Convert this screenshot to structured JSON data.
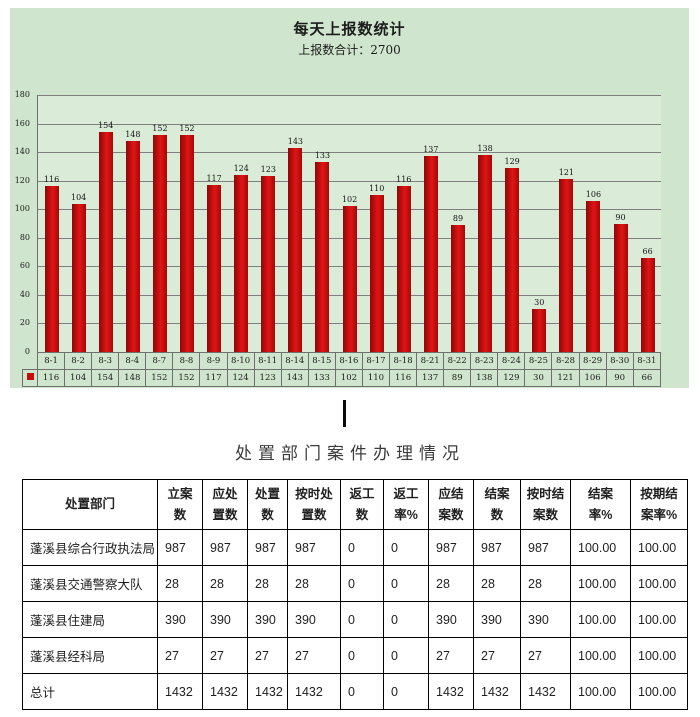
{
  "colors": {
    "panel_bg": "#cfe5cd",
    "plot_bg": "#daecd8",
    "bar_red": "#d51114",
    "bar_red_dark": "#8e0707",
    "grid_line": "#7f7f7f",
    "chart_border": "#6f6f6f",
    "table_border": "#000000",
    "legend_key": "#c90a0a"
  },
  "chart_data": {
    "type": "bar",
    "title": "每天上报数统计",
    "subtitle": "上报数合计：2700",
    "total": 2700,
    "categories": [
      "8-1",
      "8-2",
      "8-3",
      "8-4",
      "8-7",
      "8-8",
      "8-9",
      "8-10",
      "8-11",
      "8-14",
      "8-15",
      "8-16",
      "8-17",
      "8-18",
      "8-21",
      "8-22",
      "8-23",
      "8-24",
      "8-25",
      "8-28",
      "8-29",
      "8-30",
      "8-31"
    ],
    "values": [
      116,
      104,
      154,
      148,
      152,
      152,
      117,
      124,
      123,
      143,
      133,
      102,
      110,
      116,
      137,
      89,
      138,
      129,
      30,
      121,
      106,
      90,
      66
    ],
    "xlabel": "",
    "ylabel": "",
    "ylim": [
      0,
      180
    ],
    "yticks": [
      0,
      20,
      40,
      60,
      80,
      100,
      120,
      140,
      160,
      180
    ],
    "grid": true,
    "legend_position": "bottom-left-key",
    "data_labels": true
  },
  "table": {
    "title": "处置部门案件办理情况",
    "headers": [
      "处置部门",
      "立案\n数",
      "应处\n置数",
      "处置\n数",
      "按时处\n置数",
      "返工\n数",
      "返工\n率%",
      "应结\n案数",
      "结案\n数",
      "按时结\n案数",
      "结案\n率%",
      "按期结\n案率%"
    ],
    "rows": [
      [
        "蓬溪县综合行政执法局",
        "987",
        "987",
        "987",
        "987",
        "0",
        "0",
        "987",
        "987",
        "987",
        "100.00",
        "100.00"
      ],
      [
        "蓬溪县交通警察大队",
        "28",
        "28",
        "28",
        "28",
        "0",
        "0",
        "28",
        "28",
        "28",
        "100.00",
        "100.00"
      ],
      [
        "蓬溪县住建局",
        "390",
        "390",
        "390",
        "390",
        "0",
        "0",
        "390",
        "390",
        "390",
        "100.00",
        "100.00"
      ],
      [
        "蓬溪县经科局",
        "27",
        "27",
        "27",
        "27",
        "0",
        "0",
        "27",
        "27",
        "27",
        "100.00",
        "100.00"
      ],
      [
        "总计",
        "1432",
        "1432",
        "1432",
        "1432",
        "0",
        "0",
        "1432",
        "1432",
        "1432",
        "100.00",
        "100.00"
      ]
    ]
  }
}
